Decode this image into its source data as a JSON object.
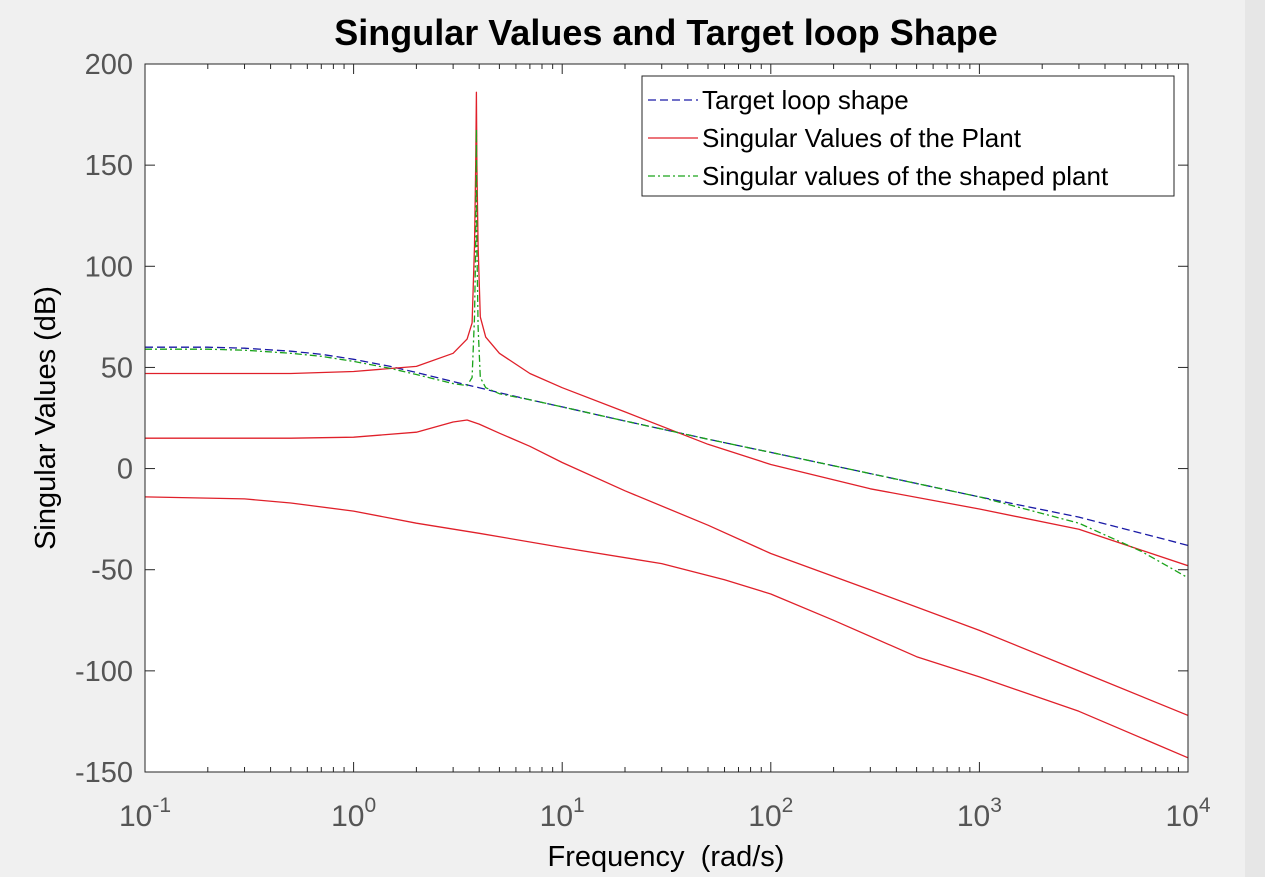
{
  "chart_data": {
    "type": "line",
    "title": "Singular Values and Target loop Shape",
    "xlabel": "Frequency  (rad/s)",
    "ylabel": "Singular Values (dB)",
    "x_scale": "log",
    "xlim": [
      0.1,
      10000
    ],
    "ylim": [
      -150,
      200
    ],
    "x_ticks": [
      {
        "value": 0.1,
        "base": "10",
        "exp": "-1"
      },
      {
        "value": 1,
        "base": "10",
        "exp": "0"
      },
      {
        "value": 10,
        "base": "10",
        "exp": "1"
      },
      {
        "value": 100,
        "base": "10",
        "exp": "2"
      },
      {
        "value": 1000,
        "base": "10",
        "exp": "3"
      },
      {
        "value": 10000,
        "base": "10",
        "exp": "4"
      }
    ],
    "y_ticks": [
      "200",
      "150",
      "100",
      "50",
      "0",
      "-50",
      "-100",
      "-150"
    ],
    "grid": false,
    "legend_position": "top-right",
    "legend": [
      {
        "label": "Target loop shape",
        "color": "#1a1aa6",
        "style": "dashed"
      },
      {
        "label": "Singular Values of the Plant",
        "color": "#e0202a",
        "style": "solid"
      },
      {
        "label": "Singular values of the shaped plant",
        "color": "#1aa31a",
        "style": "dashdot"
      }
    ],
    "series": [
      {
        "color": "#1a1aa6",
        "style": "dashed",
        "points": [
          [
            0.1,
            60
          ],
          [
            0.2,
            60
          ],
          [
            0.3,
            59.5
          ],
          [
            0.5,
            58
          ],
          [
            0.7,
            56.5
          ],
          [
            1,
            54
          ],
          [
            1.5,
            50.5
          ],
          [
            2,
            47.5
          ],
          [
            3,
            43
          ],
          [
            4,
            40
          ],
          [
            5,
            37.5
          ],
          [
            7,
            34
          ],
          [
            10,
            30.5
          ],
          [
            20,
            23.5
          ],
          [
            50,
            14.5
          ],
          [
            100,
            8
          ],
          [
            300,
            -2.5
          ],
          [
            1000,
            -14
          ],
          [
            3000,
            -24
          ],
          [
            10000,
            -38
          ]
        ]
      },
      {
        "color": "#e0202a",
        "style": "solid",
        "points": [
          [
            0.1,
            47
          ],
          [
            0.5,
            47
          ],
          [
            1,
            48
          ],
          [
            2,
            50.5
          ],
          [
            3,
            57
          ],
          [
            3.5,
            64
          ],
          [
            3.7,
            72
          ],
          [
            3.8,
            110
          ],
          [
            3.85,
            150
          ],
          [
            3.88,
            186
          ],
          [
            3.9,
            150
          ],
          [
            3.95,
            110
          ],
          [
            4.05,
            75
          ],
          [
            4.3,
            65
          ],
          [
            5,
            57
          ],
          [
            7,
            47
          ],
          [
            10,
            40
          ],
          [
            20,
            28
          ],
          [
            50,
            12
          ],
          [
            100,
            2
          ],
          [
            300,
            -10
          ],
          [
            1000,
            -20
          ],
          [
            3000,
            -30
          ],
          [
            10000,
            -48
          ]
        ]
      },
      {
        "color": "#e0202a",
        "style": "solid",
        "points": [
          [
            0.1,
            15
          ],
          [
            0.5,
            15
          ],
          [
            1,
            15.5
          ],
          [
            2,
            18
          ],
          [
            3,
            23
          ],
          [
            3.5,
            24
          ],
          [
            4,
            22
          ],
          [
            5,
            17.5
          ],
          [
            7,
            11
          ],
          [
            10,
            3
          ],
          [
            20,
            -11
          ],
          [
            50,
            -28
          ],
          [
            100,
            -42
          ],
          [
            300,
            -60
          ],
          [
            1000,
            -80
          ],
          [
            3000,
            -100
          ],
          [
            10000,
            -122
          ]
        ]
      },
      {
        "color": "#e0202a",
        "style": "solid",
        "points": [
          [
            0.1,
            -14
          ],
          [
            0.3,
            -15
          ],
          [
            0.5,
            -17
          ],
          [
            1,
            -21
          ],
          [
            2,
            -27
          ],
          [
            4,
            -32
          ],
          [
            10,
            -39
          ],
          [
            30,
            -47
          ],
          [
            60,
            -55
          ],
          [
            100,
            -62
          ],
          [
            200,
            -75
          ],
          [
            500,
            -93
          ],
          [
            1000,
            -103
          ],
          [
            3000,
            -120
          ],
          [
            10000,
            -143
          ]
        ]
      },
      {
        "color": "#1aa31a",
        "style": "dashdot",
        "points": [
          [
            0.1,
            59
          ],
          [
            0.2,
            59
          ],
          [
            0.3,
            58.5
          ],
          [
            0.5,
            57
          ],
          [
            0.7,
            55.5
          ],
          [
            1,
            53
          ],
          [
            1.5,
            49.5
          ],
          [
            2,
            46.5
          ],
          [
            3,
            42
          ],
          [
            3.5,
            41
          ],
          [
            3.7,
            45
          ],
          [
            3.8,
            75
          ],
          [
            3.85,
            110
          ],
          [
            3.88,
            168
          ],
          [
            3.9,
            110
          ],
          [
            3.95,
            70
          ],
          [
            4.05,
            45
          ],
          [
            4.3,
            40
          ],
          [
            5,
            37
          ],
          [
            7,
            34
          ],
          [
            10,
            30.5
          ],
          [
            20,
            23.5
          ],
          [
            50,
            14.5
          ],
          [
            100,
            8
          ],
          [
            300,
            -2.5
          ],
          [
            1000,
            -14
          ],
          [
            3000,
            -27
          ],
          [
            6000,
            -41
          ],
          [
            10000,
            -54
          ]
        ]
      }
    ]
  }
}
